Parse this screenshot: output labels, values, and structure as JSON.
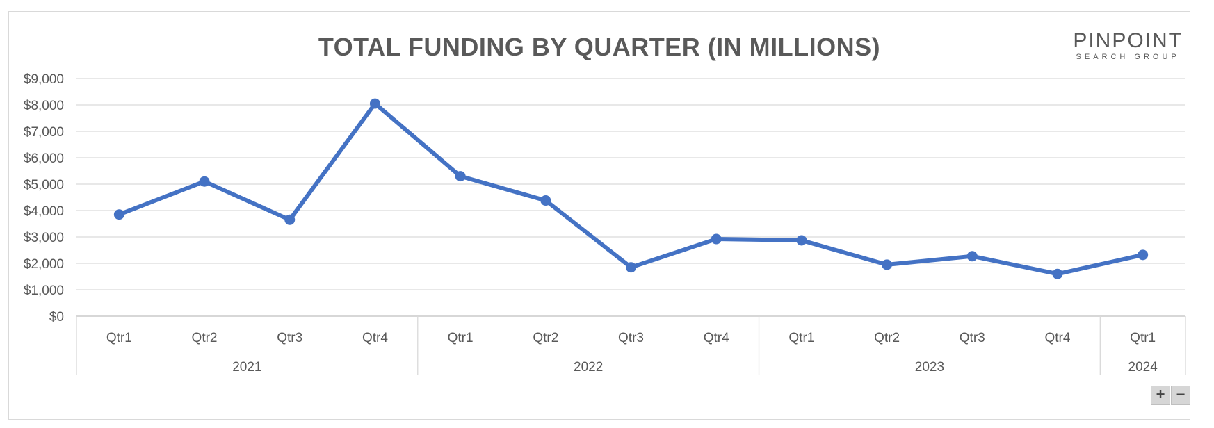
{
  "chart_data": {
    "type": "line",
    "title": "TOTAL FUNDING BY QUARTER (IN MILLIONS)",
    "xlabel": "",
    "ylabel": "",
    "ylim": [
      0,
      9000
    ],
    "y_ticks": [
      "$0",
      "$1,000",
      "$2,000",
      "$3,000",
      "$4,000",
      "$5,000",
      "$6,000",
      "$7,000",
      "$8,000",
      "$9,000"
    ],
    "categories": [
      "Qtr1",
      "Qtr2",
      "Qtr3",
      "Qtr4",
      "Qtr1",
      "Qtr2",
      "Qtr3",
      "Qtr4",
      "Qtr1",
      "Qtr2",
      "Qtr3",
      "Qtr4",
      "Qtr1"
    ],
    "groups": [
      {
        "label": "2021",
        "count": 4
      },
      {
        "label": "2022",
        "count": 4
      },
      {
        "label": "2023",
        "count": 4
      },
      {
        "label": "2024",
        "count": 1
      }
    ],
    "series": [
      {
        "values": [
          3850,
          5100,
          3650,
          8050,
          5300,
          4380,
          1850,
          2920,
          2870,
          1950,
          2270,
          1600,
          2320
        ],
        "color": "#4472c4"
      }
    ],
    "grid": true,
    "legend": "none"
  },
  "logo": {
    "main": "PINPOINT",
    "sub": "SEARCH GROUP"
  },
  "zoom": {
    "plus": "+",
    "minus": "−"
  }
}
